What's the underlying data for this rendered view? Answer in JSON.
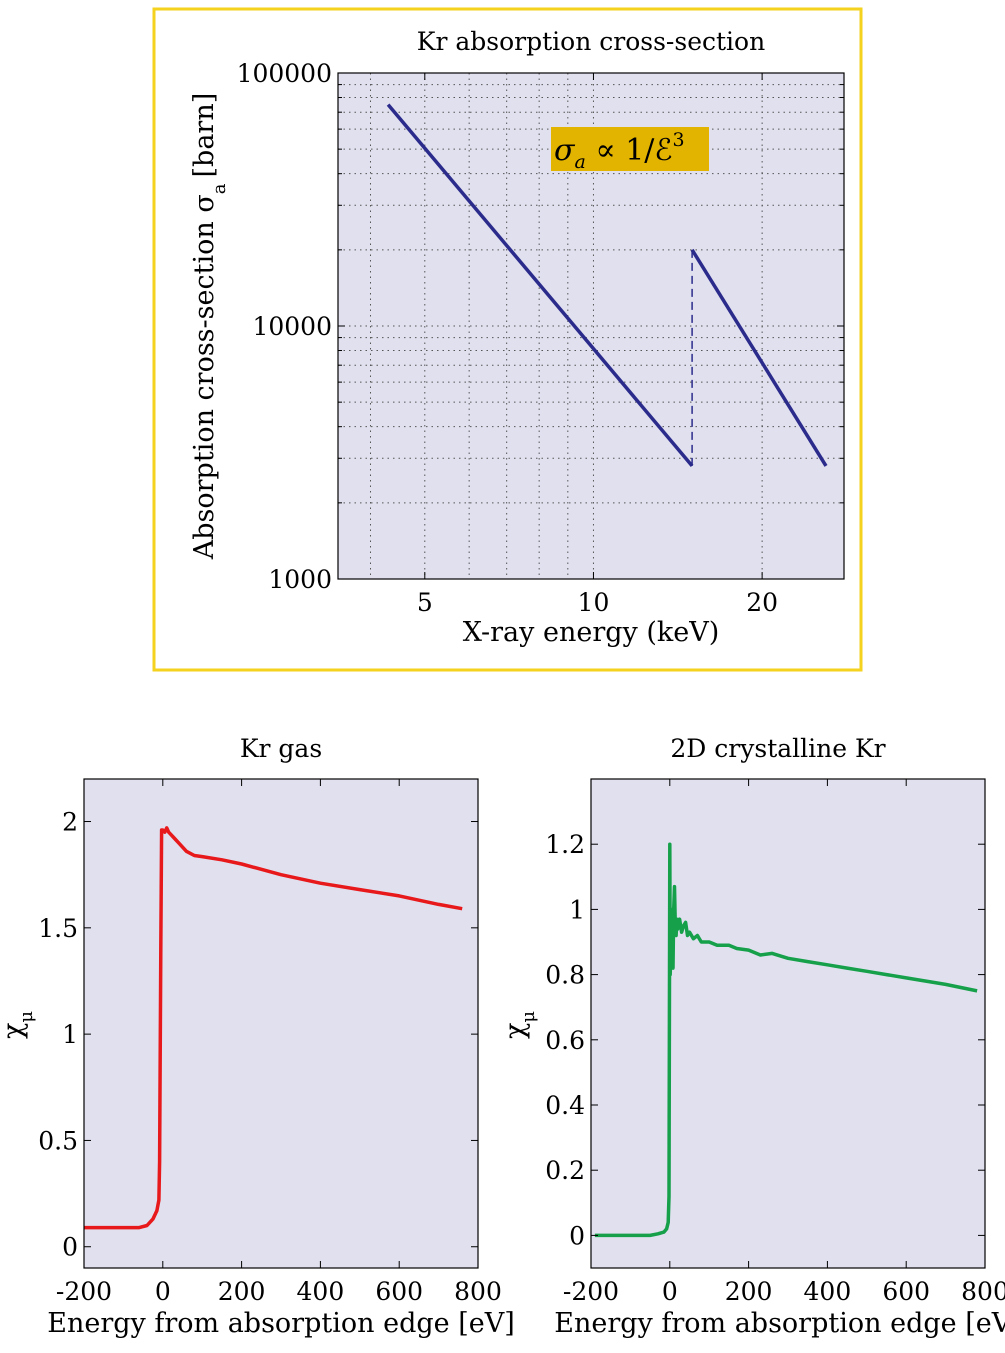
{
  "chart_data": [
    {
      "type": "line",
      "title": "Kr absorption cross-section",
      "xlabel": "X-ray energy (keV)",
      "ylabel": "Absorption cross-section σ",
      "ylabel_sub": "a",
      "ylabel_unit": "[barn]",
      "xscale": "log",
      "yscale": "log",
      "xlim": [
        3.5,
        28
      ],
      "ylim": [
        1000,
        100000
      ],
      "xticks": [
        5,
        10,
        20
      ],
      "xtick_labels": [
        "5",
        "10",
        "20"
      ],
      "yticks": [
        1000,
        10000,
        100000
      ],
      "ytick_labels": [
        "1000",
        "10000",
        "100000"
      ],
      "grid": true,
      "annotation": {
        "text": "σa ∝ 1/ℰ3",
        "sym": "σ",
        "sub": "a",
        "mid": " ∝ 1/ℰ",
        "sup": "3",
        "color": "#e2b400"
      },
      "series": [
        {
          "x": [
            4.3,
            15.0
          ],
          "y": [
            75000,
            2800
          ],
          "color": "#2b2b8c",
          "style": "solid"
        },
        {
          "x": [
            15.0,
            15.0
          ],
          "y": [
            2800,
            20000
          ],
          "color": "#2b2b8c",
          "style": "dashed"
        },
        {
          "x": [
            15.0,
            26.0
          ],
          "y": [
            20000,
            2800
          ],
          "color": "#2b2b8c",
          "style": "solid"
        }
      ]
    },
    {
      "type": "line",
      "title": "Kr gas",
      "xlabel": "Energy from absorption edge [eV]",
      "ylabel": "χ",
      "ylabel_sub": "μ",
      "xlim": [
        -200,
        800
      ],
      "ylim": [
        -0.1,
        2.2
      ],
      "xticks": [
        -200,
        0,
        200,
        400,
        600,
        800
      ],
      "xtick_labels": [
        "-200",
        "0",
        "200",
        "400",
        "600",
        "800"
      ],
      "yticks": [
        0,
        0.5,
        1,
        1.5,
        2
      ],
      "ytick_labels": [
        "0",
        "0.5",
        "1",
        "1.5",
        "2"
      ],
      "grid": false,
      "series": [
        {
          "color": "#e8191a",
          "x": [
            -200,
            -100,
            -60,
            -40,
            -25,
            -15,
            -10,
            -8,
            -5,
            -3,
            0,
            5,
            10,
            15,
            20,
            30,
            40,
            60,
            80,
            100,
            150,
            200,
            300,
            400,
            500,
            600,
            700,
            760
          ],
          "y": [
            0.09,
            0.09,
            0.09,
            0.1,
            0.13,
            0.17,
            0.22,
            0.4,
            1.4,
            1.96,
            1.96,
            1.95,
            1.97,
            1.95,
            1.94,
            1.92,
            1.9,
            1.86,
            1.84,
            1.835,
            1.82,
            1.8,
            1.75,
            1.71,
            1.68,
            1.65,
            1.61,
            1.59
          ]
        }
      ]
    },
    {
      "type": "line",
      "title": "2D crystalline Kr",
      "xlabel": "Energy from absorption edge [eV]",
      "ylabel": "χ",
      "ylabel_sub": "μ",
      "xlim": [
        -200,
        800
      ],
      "ylim": [
        -0.1,
        1.4
      ],
      "xticks": [
        -200,
        0,
        200,
        400,
        600,
        800
      ],
      "xtick_labels": [
        "-200",
        "0",
        "200",
        "400",
        "600",
        "800"
      ],
      "yticks": [
        0,
        0.2,
        0.4,
        0.6,
        0.8,
        1,
        1.2
      ],
      "ytick_labels": [
        "0",
        "0.2",
        "0.4",
        "0.6",
        "0.8",
        "1",
        "1.2"
      ],
      "grid": false,
      "series": [
        {
          "color": "#16a04a",
          "x": [
            -190,
            -100,
            -50,
            -30,
            -15,
            -8,
            -4,
            -2,
            0,
            1,
            2,
            4,
            6,
            8,
            10,
            12,
            14,
            16,
            18,
            20,
            25,
            30,
            35,
            40,
            45,
            50,
            60,
            70,
            80,
            100,
            120,
            150,
            170,
            200,
            230,
            260,
            300,
            350,
            400,
            450,
            500,
            550,
            600,
            650,
            700,
            780
          ],
          "y": [
            0.0,
            0.0,
            0.0,
            0.005,
            0.01,
            0.02,
            0.04,
            0.12,
            1.2,
            0.8,
            0.85,
            1.0,
            0.9,
            0.82,
            1.0,
            1.07,
            0.95,
            0.92,
            0.97,
            0.94,
            0.97,
            0.93,
            0.95,
            0.96,
            0.92,
            0.93,
            0.91,
            0.92,
            0.9,
            0.9,
            0.89,
            0.89,
            0.88,
            0.875,
            0.86,
            0.865,
            0.85,
            0.84,
            0.83,
            0.82,
            0.81,
            0.8,
            0.79,
            0.78,
            0.77,
            0.75
          ]
        }
      ]
    }
  ]
}
